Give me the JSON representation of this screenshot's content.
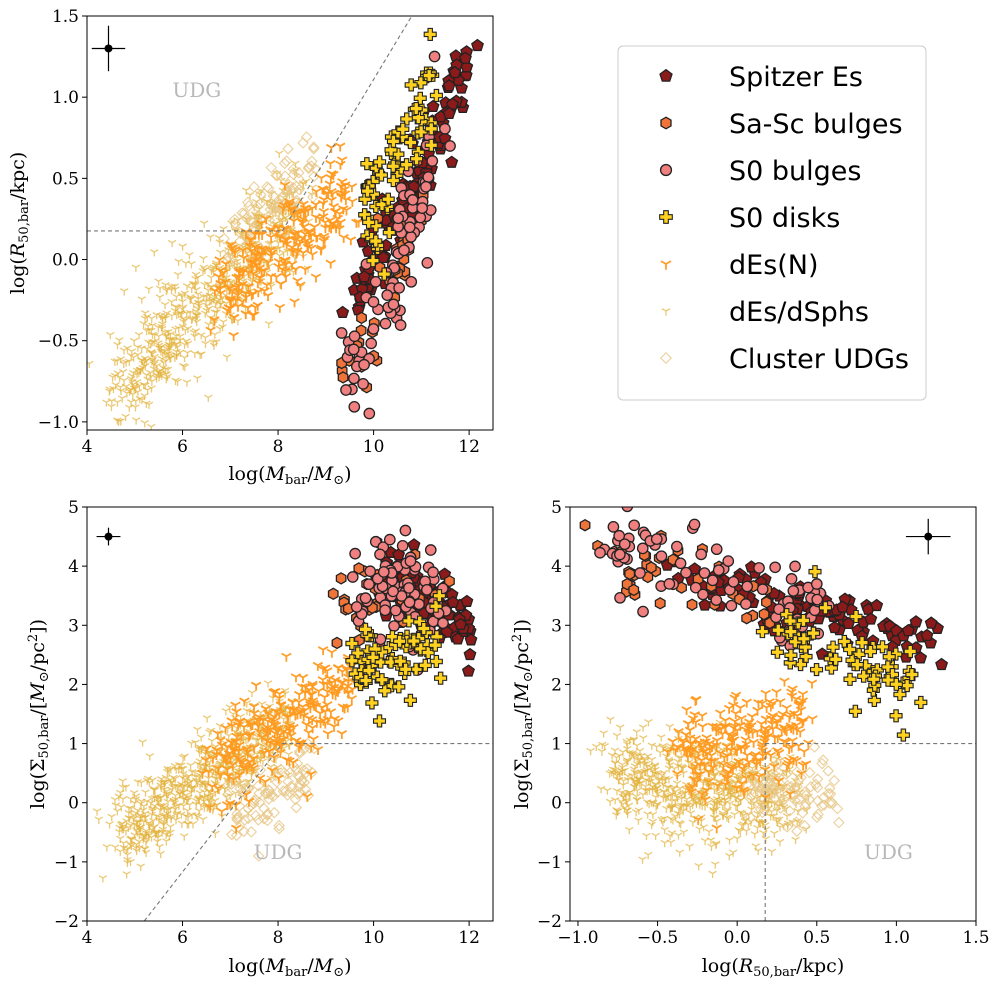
{
  "chart_data": [
    {
      "type": "scatter",
      "id": "p1",
      "xlabel": "log(M_bar/M_sun)",
      "ylabel": "log(R_50,bar/kpc)",
      "xlim": [
        4,
        12.5
      ],
      "ylim": [
        -1.05,
        1.5
      ],
      "xticks": [
        4,
        6,
        8,
        10,
        12
      ],
      "yticks": [
        -1.0,
        -0.5,
        0.0,
        0.5,
        1.0,
        1.5
      ],
      "xtick_labels": [
        "4",
        "6",
        "8",
        "10",
        "12"
      ],
      "ytick_labels": [
        "−1.0",
        "−0.5",
        "0.0",
        "0.5",
        "1.0",
        "1.5"
      ],
      "region_label": "UDG",
      "region_label_at": [
        6.3,
        1.0
      ],
      "boundary_lines": [
        {
          "style": "dashed",
          "points": [
            [
              4,
              0.176
            ],
            [
              8.09,
              0.176
            ]
          ]
        },
        {
          "style": "dashed",
          "points": [
            [
              8.09,
              0.176
            ],
            [
              10.8,
              1.5
            ]
          ]
        }
      ],
      "error_bar": {
        "x": 4.45,
        "y": 1.3,
        "xerr": 0.35,
        "yerr": 0.14
      },
      "series": [
        {
          "name": "Spitzer Es",
          "marker": "pentagon",
          "trend": {
            "x": [
              9.6,
              12.0
            ],
            "y": [
              -0.3,
              1.2
            ],
            "scatter": 0.1
          }
        },
        {
          "name": "Sa-Sc bulges",
          "marker": "hexagon",
          "trend": {
            "x": [
              9.2,
              11.0
            ],
            "y": [
              -0.8,
              0.3
            ],
            "scatter": 0.15
          }
        },
        {
          "name": "S0 bulges",
          "marker": "circle",
          "trend": {
            "x": [
              9.4,
              11.4
            ],
            "y": [
              -0.8,
              0.7
            ],
            "scatter": 0.18
          }
        },
        {
          "name": "S0 disks",
          "marker": "plus",
          "trend": {
            "x": [
              9.8,
              11.3
            ],
            "y": [
              0.2,
              1.1
            ],
            "scatter": 0.15
          }
        },
        {
          "name": "dEs(N)",
          "marker": "tri",
          "trend": {
            "x": [
              6.8,
              9.5
            ],
            "y": [
              -0.2,
              0.4
            ],
            "scatter": 0.15
          }
        },
        {
          "name": "dEs/dSphs",
          "marker": "tri-small",
          "trend": {
            "x": [
              4.6,
              8.4
            ],
            "y": [
              -0.8,
              0.3
            ],
            "scatter": 0.17
          }
        },
        {
          "name": "Cluster UDGs",
          "marker": "diamond",
          "trend": {
            "x": [
              7.0,
              8.8
            ],
            "y": [
              0.1,
              0.6
            ],
            "scatter": 0.1
          }
        }
      ]
    },
    {
      "type": "scatter",
      "id": "p2",
      "xlabel": "log(M_bar/M_sun)",
      "ylabel": "log(Σ_50,bar/[M_sun/pc^2])",
      "xlim": [
        4,
        12.5
      ],
      "ylim": [
        -2,
        5
      ],
      "xticks": [
        4,
        6,
        8,
        10,
        12
      ],
      "yticks": [
        -2,
        -1,
        0,
        1,
        2,
        3,
        4,
        5
      ],
      "xtick_labels": [
        "4",
        "6",
        "8",
        "10",
        "12"
      ],
      "ytick_labels": [
        "−2",
        "−1",
        "0",
        "1",
        "2",
        "3",
        "4",
        "5"
      ],
      "region_label": "UDG",
      "region_label_at": [
        8.0,
        -0.95
      ],
      "boundary_lines": [
        {
          "style": "dashed",
          "points": [
            [
              8.09,
              1.0
            ],
            [
              12.5,
              1.0
            ]
          ]
        },
        {
          "style": "dashed",
          "points": [
            [
              5.2,
              -2.0
            ],
            [
              8.09,
              1.0
            ]
          ]
        }
      ],
      "error_bar": {
        "x": 4.45,
        "y": 4.5,
        "xerr": 0.25,
        "yerr": 0.15
      },
      "series": [
        {
          "name": "Spitzer Es",
          "marker": "pentagon",
          "trend": {
            "x": [
              10.2,
              12.0
            ],
            "y": [
              3.9,
              2.9
            ],
            "scatter": 0.25
          }
        },
        {
          "name": "Sa-Sc bulges",
          "marker": "hexagon",
          "trend": {
            "x": [
              9.3,
              11.5
            ],
            "y": [
              3.3,
              3.6
            ],
            "scatter": 0.35
          }
        },
        {
          "name": "S0 bulges",
          "marker": "circle",
          "trend": {
            "x": [
              9.6,
              11.4
            ],
            "y": [
              3.6,
              3.4
            ],
            "scatter": 0.45
          }
        },
        {
          "name": "S0 disks",
          "marker": "plus",
          "trend": {
            "x": [
              9.6,
              11.4
            ],
            "y": [
              2.2,
              2.8
            ],
            "scatter": 0.4
          }
        },
        {
          "name": "dEs(N)",
          "marker": "tri",
          "trend": {
            "x": [
              6.5,
              9.5
            ],
            "y": [
              0.5,
              2.0
            ],
            "scatter": 0.4
          }
        },
        {
          "name": "dEs/dSphs",
          "marker": "tri-small",
          "trend": {
            "x": [
              4.6,
              8.2
            ],
            "y": [
              -0.6,
              1.4
            ],
            "scatter": 0.35
          }
        },
        {
          "name": "Cluster UDGs",
          "marker": "diamond",
          "trend": {
            "x": [
              7.0,
              8.8
            ],
            "y": [
              -0.2,
              0.5
            ],
            "scatter": 0.3
          }
        }
      ]
    },
    {
      "type": "scatter",
      "id": "p3",
      "xlabel": "log(R_50,bar/kpc)",
      "ylabel": "log(Σ_50,bar/[M_sun/pc^2])",
      "xlim": [
        -1.05,
        1.5
      ],
      "ylim": [
        -2,
        5
      ],
      "xticks": [
        -1.0,
        -0.5,
        0.0,
        0.5,
        1.0,
        1.5
      ],
      "yticks": [
        -2,
        -1,
        0,
        1,
        2,
        3,
        4,
        5
      ],
      "xtick_labels": [
        "−1.0",
        "−0.5",
        "0.0",
        "0.5",
        "1.0",
        "1.5"
      ],
      "ytick_labels": [
        "−2",
        "−1",
        "0",
        "1",
        "2",
        "3",
        "4",
        "5"
      ],
      "region_label": "UDG",
      "region_label_at": [
        0.95,
        -0.95
      ],
      "boundary_lines": [
        {
          "style": "dashed",
          "points": [
            [
              0.176,
              -2.0
            ],
            [
              0.176,
              1.0
            ]
          ]
        },
        {
          "style": "dashed",
          "points": [
            [
              0.176,
              1.0
            ],
            [
              1.5,
              1.0
            ]
          ]
        }
      ],
      "error_bar": {
        "x": 1.2,
        "y": 4.5,
        "xerr": 0.14,
        "yerr": 0.3
      },
      "series": [
        {
          "name": "Spitzer Es",
          "marker": "pentagon",
          "trend": {
            "x": [
              -0.3,
              1.25
            ],
            "y": [
              3.8,
              2.7
            ],
            "scatter": 0.2
          }
        },
        {
          "name": "Sa-Sc bulges",
          "marker": "hexagon",
          "trend": {
            "x": [
              -0.85,
              0.3
            ],
            "y": [
              4.1,
              3.2
            ],
            "scatter": 0.3
          }
        },
        {
          "name": "S0 bulges",
          "marker": "circle",
          "trend": {
            "x": [
              -0.8,
              0.6
            ],
            "y": [
              4.4,
              3.1
            ],
            "scatter": 0.3
          }
        },
        {
          "name": "S0 disks",
          "marker": "plus",
          "trend": {
            "x": [
              0.2,
              1.1
            ],
            "y": [
              3.0,
              2.1
            ],
            "scatter": 0.35
          }
        },
        {
          "name": "dEs(N)",
          "marker": "tri",
          "trend": {
            "x": [
              -0.35,
              0.45
            ],
            "y": [
              0.8,
              1.4
            ],
            "scatter": 0.45
          }
        },
        {
          "name": "dEs/dSphs",
          "marker": "tri-small",
          "trend": {
            "x": [
              -0.8,
              0.35
            ],
            "y": [
              0.5,
              0.0
            ],
            "scatter": 0.4
          }
        },
        {
          "name": "Cluster UDGs",
          "marker": "diamond",
          "trend": {
            "x": [
              0.1,
              0.6
            ],
            "y": [
              0.3,
              0.1
            ],
            "scatter": 0.3
          }
        }
      ]
    }
  ],
  "legend": {
    "placement": "top-right",
    "entries": [
      {
        "label": "Spitzer Es",
        "marker": "pentagon",
        "color": "#8b1a1a"
      },
      {
        "label": "Sa-Sc bulges",
        "marker": "hexagon",
        "color": "#f0743a"
      },
      {
        "label": "S0 bulges",
        "marker": "circle",
        "color": "#f08080"
      },
      {
        "label": "S0 disks",
        "marker": "plus",
        "color": "#ffd21f"
      },
      {
        "label": "dEs(N)",
        "marker": "tri",
        "color": "#ff9a1f"
      },
      {
        "label": "dEs/dSphs",
        "marker": "tri-small",
        "color": "#e3b23c"
      },
      {
        "label": "Cluster UDGs",
        "marker": "diamond",
        "color": "#e8c88a"
      }
    ]
  },
  "colors": {
    "Spitzer Es": "#8b1a1a",
    "Sa-Sc bulges": "#f0743a",
    "S0 bulges": "#f08080",
    "S0 disks": "#ffd21f",
    "dEs(N)": "#ff9a1f",
    "dEs/dSphs": "#e3b23c",
    "Cluster UDGs": "#e8c88a",
    "boundary": "#777777",
    "udg_label": "#b8b8b8"
  }
}
